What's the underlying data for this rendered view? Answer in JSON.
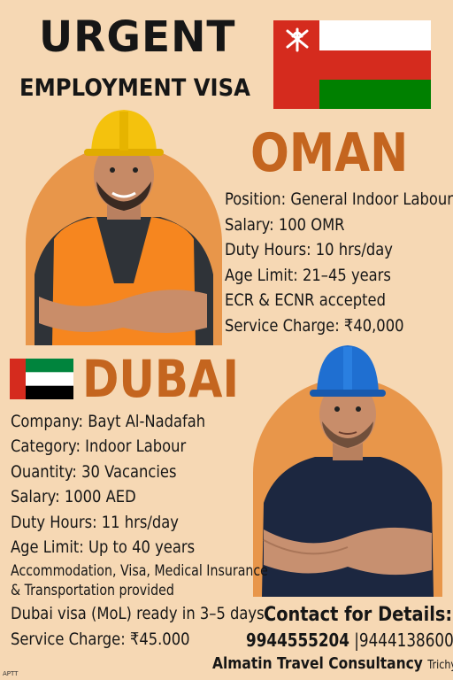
{
  "header": {
    "headline": "URGENT",
    "subheadline": "EMPLOYMENT VISA"
  },
  "oman": {
    "title": "OMAN",
    "details": [
      "Position: General Indoor Labour",
      "Salary: 100 OMR",
      "Duty Hours: 10 hrs/day",
      "Age Limit: 21–45 years",
      "ECR & ECNR accepted",
      "Service Charge: ₹40,000"
    ],
    "flag_colors": {
      "white": "#ffffff",
      "red": "#d52b1e",
      "green": "#008000"
    }
  },
  "dubai": {
    "title": "DUBAI",
    "details": [
      "Company: Bayt Al-Nadafah",
      "Category: Indoor Labour",
      "Ouantity: 30 Vacancies",
      "Salary: 1000 AED",
      "Duty Hours: 11 hrs/day",
      "Age Limit: Up to 40 years"
    ],
    "benefits_line1": "Accommodation, Visa, Medical Insurance",
    "benefits_line2": "& Transportation provided",
    "visa_line": "Dubai visa (MoL) ready in 3–5 days",
    "service_charge": "Service Charge: ₹45.000",
    "flag_colors": {
      "red": "#d52b1e",
      "green": "#00843d",
      "white": "#ffffff",
      "black": "#000000"
    }
  },
  "contact": {
    "heading": "Contact for Details:",
    "phone1": "9944555204",
    "separator": " |",
    "phone2": "9444138600",
    "agency": "Almatin Travel Consultancy",
    "city": "Trichy"
  },
  "footer_tag": "APTT",
  "colors": {
    "background": "#f6d8b4",
    "accent_orange": "#c4651f",
    "arch_orange": "#e8964a"
  },
  "images": {
    "worker_1": "worker-yellow-helmet-orange-vest",
    "worker_2": "worker-blue-helmet-navy-shirt"
  }
}
